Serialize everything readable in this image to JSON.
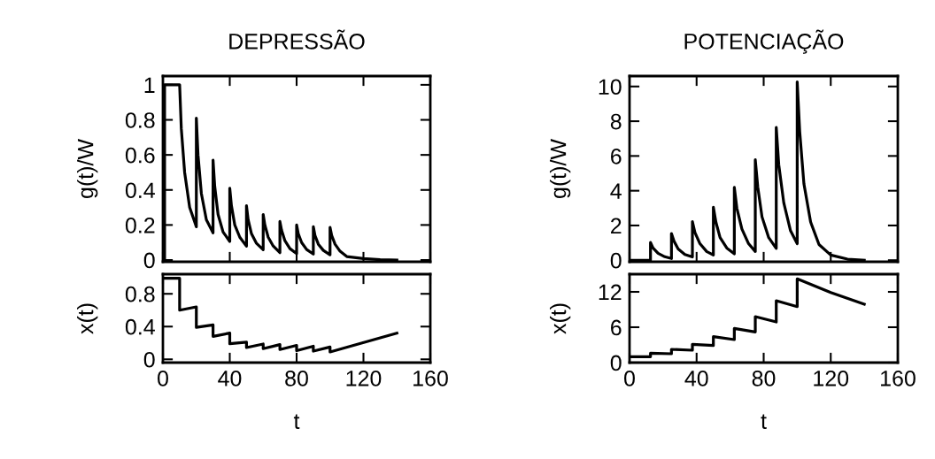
{
  "chart_data": [
    {
      "type": "line",
      "title": "DEPRESSÃO",
      "ylabel": "g(t)/W",
      "xlim": [
        0,
        160
      ],
      "xticks": [
        0,
        40,
        80,
        120,
        160
      ],
      "ylim": [
        -0.01,
        1.05
      ],
      "yticks": [
        0,
        0.2,
        0.4,
        0.6,
        0.8,
        1
      ],
      "tick_labels": "y",
      "marker": "none",
      "line_style": "solid",
      "series": [
        {
          "color": "#000000",
          "x": [
            0,
            1,
            1,
            10,
            11,
            13,
            16,
            20,
            20,
            21,
            23,
            26,
            30,
            30,
            31,
            33,
            36,
            40,
            40,
            41,
            43,
            46,
            50,
            50,
            51,
            53,
            56,
            60,
            60,
            61,
            63,
            66,
            70,
            70,
            71,
            73,
            76,
            80,
            80,
            81,
            83,
            86,
            90,
            90,
            91,
            93,
            96,
            100,
            100,
            101,
            103,
            106,
            110,
            120,
            130,
            140
          ],
          "values": [
            0,
            0,
            1,
            1,
            0.75,
            0.5,
            0.3,
            0.19,
            0.81,
            0.6,
            0.38,
            0.23,
            0.155,
            0.57,
            0.42,
            0.26,
            0.16,
            0.106,
            0.41,
            0.31,
            0.2,
            0.13,
            0.079,
            0.31,
            0.23,
            0.15,
            0.095,
            0.059,
            0.26,
            0.2,
            0.13,
            0.08,
            0.042,
            0.22,
            0.17,
            0.11,
            0.065,
            0.037,
            0.2,
            0.15,
            0.1,
            0.06,
            0.034,
            0.19,
            0.14,
            0.09,
            0.055,
            0.03,
            0.186,
            0.14,
            0.09,
            0.05,
            0.02,
            0.008,
            0.002,
            0
          ]
        }
      ]
    },
    {
      "type": "line",
      "xlabel": "t",
      "ylabel": "x(t)",
      "xlim": [
        0,
        160
      ],
      "xticks": [
        0,
        40,
        80,
        120,
        160
      ],
      "ylim": [
        -0.04,
        1.04
      ],
      "yticks": [
        0,
        0.4,
        0.8
      ],
      "marker": "none",
      "line_style": "solid",
      "series": [
        {
          "color": "#000000",
          "x": [
            0,
            10,
            10,
            20,
            20,
            30,
            30,
            40,
            40,
            50,
            50,
            60,
            60,
            70,
            70,
            80,
            80,
            90,
            90,
            100,
            100,
            140
          ],
          "values": [
            0.99,
            0.99,
            0.6,
            0.64,
            0.39,
            0.42,
            0.28,
            0.32,
            0.19,
            0.21,
            0.144,
            0.187,
            0.13,
            0.18,
            0.12,
            0.17,
            0.105,
            0.16,
            0.1,
            0.15,
            0.09,
            0.32
          ]
        }
      ]
    },
    {
      "type": "line",
      "title": "POTENCIAÇÃO",
      "ylabel": "g(t)/W",
      "xlim": [
        0,
        160
      ],
      "xticks": [
        0,
        40,
        80,
        120,
        160
      ],
      "ylim": [
        -0.09,
        10.6
      ],
      "yticks": [
        0,
        2,
        4,
        6,
        8,
        10
      ],
      "tick_labels": "y",
      "marker": "none",
      "line_style": "solid",
      "series": [
        {
          "color": "#000000",
          "x": [
            0,
            12.5,
            12.5,
            14,
            17,
            21,
            25,
            25,
            26.5,
            29,
            33,
            37.5,
            37.5,
            39,
            42,
            46,
            50,
            50,
            51.5,
            54,
            58,
            62.5,
            62.5,
            64,
            67,
            71,
            75,
            75,
            76.5,
            79,
            83,
            87.5,
            87.5,
            89,
            92,
            96,
            100,
            100,
            101.5,
            104,
            108,
            113,
            120,
            130,
            140
          ],
          "values": [
            0,
            0,
            1.02,
            0.7,
            0.4,
            0.2,
            0.1,
            1.54,
            1.1,
            0.65,
            0.33,
            0.19,
            2.22,
            1.6,
            0.95,
            0.5,
            0.3,
            3.05,
            2.2,
            1.3,
            0.7,
            0.37,
            4.19,
            3.0,
            1.8,
            0.95,
            0.5,
            5.78,
            4.2,
            2.5,
            1.3,
            0.68,
            7.64,
            5.5,
            3.3,
            1.7,
            0.95,
            10.27,
            7.4,
            4.4,
            2.2,
            0.9,
            0.3,
            0.06,
            0
          ]
        }
      ]
    },
    {
      "type": "line",
      "xlabel": "t",
      "ylabel": "x(t)",
      "xlim": [
        0,
        160
      ],
      "xticks": [
        0,
        40,
        80,
        120,
        160
      ],
      "ylim": [
        0,
        15
      ],
      "yticks": [
        0,
        6,
        12
      ],
      "marker": "none",
      "line_style": "solid",
      "series": [
        {
          "color": "#000000",
          "x": [
            0,
            12.5,
            12.5,
            25,
            25,
            37.5,
            37.5,
            50,
            50,
            62.5,
            62.5,
            75,
            75,
            87.5,
            87.5,
            100,
            100,
            120,
            140
          ],
          "values": [
            1.0,
            1.0,
            1.6,
            1.5,
            2.25,
            2.1,
            3.1,
            2.9,
            4.4,
            3.9,
            5.8,
            5.2,
            7.8,
            6.9,
            10.5,
            9.5,
            14.2,
            11.9,
            9.9
          ]
        }
      ]
    }
  ]
}
